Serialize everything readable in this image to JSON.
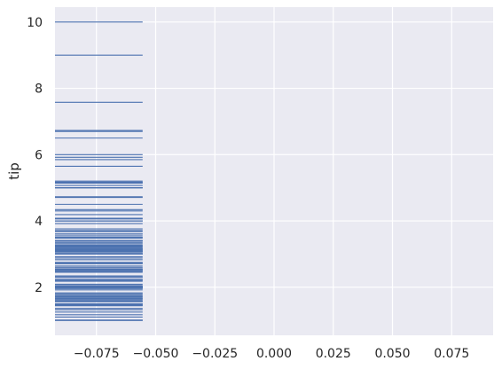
{
  "chart_data": {
    "type": "rugplot",
    "ylabel": "tip",
    "xlabel": "",
    "title": "",
    "xlim": [
      -0.0925,
      0.0925
    ],
    "ylim": [
      0.55,
      10.45
    ],
    "x_ticks": [
      -0.075,
      -0.05,
      -0.025,
      0.0,
      0.025,
      0.05,
      0.075
    ],
    "x_tick_labels": [
      "−0.075",
      "−0.050",
      "−0.025",
      "0.000",
      "0.025",
      "0.050",
      "0.075"
    ],
    "y_ticks": [
      2,
      4,
      6,
      8,
      10
    ],
    "y_tick_labels": [
      "2",
      "4",
      "6",
      "8",
      "10"
    ],
    "grid": true,
    "rug_color": "#4c72b0",
    "background_color": "#eaeaf2",
    "values": [
      10.0,
      9.0,
      7.58,
      6.73,
      6.7,
      6.5,
      6.0,
      5.92,
      5.85,
      5.65,
      5.2,
      5.17,
      5.16,
      5.14,
      5.07,
      5.0,
      5.0,
      5.0,
      4.73,
      4.71,
      4.5,
      4.34,
      4.3,
      4.19,
      4.08,
      4.06,
      4.0,
      4.0,
      4.0,
      3.92,
      3.76,
      3.71,
      3.68,
      3.61,
      3.6,
      3.55,
      3.51,
      3.5,
      3.48,
      3.41,
      3.4,
      3.39,
      3.35,
      3.31,
      3.27,
      3.25,
      3.23,
      3.21,
      3.18,
      3.16,
      3.15,
      3.14,
      3.12,
      3.11,
      3.09,
      3.08,
      3.07,
      3.06,
      3.02,
      3.01,
      3.0,
      3.0,
      3.0,
      2.92,
      2.88,
      2.83,
      2.75,
      2.74,
      2.72,
      2.71,
      2.64,
      2.6,
      2.56,
      2.55,
      2.54,
      2.52,
      2.5,
      2.5,
      2.5,
      2.47,
      2.45,
      2.34,
      2.31,
      2.3,
      2.24,
      2.23,
      2.2,
      2.18,
      2.09,
      2.05,
      2.03,
      2.02,
      2.01,
      2.0,
      2.0,
      2.0,
      1.98,
      1.97,
      1.96,
      1.92,
      1.83,
      1.8,
      1.76,
      1.73,
      1.71,
      1.68,
      1.66,
      1.64,
      1.61,
      1.58,
      1.57,
      1.56,
      1.5,
      1.5,
      1.48,
      1.47,
      1.45,
      1.44,
      1.36,
      1.32,
      1.25,
      1.17,
      1.1,
      1.01,
      1.0,
      1.0
    ]
  }
}
